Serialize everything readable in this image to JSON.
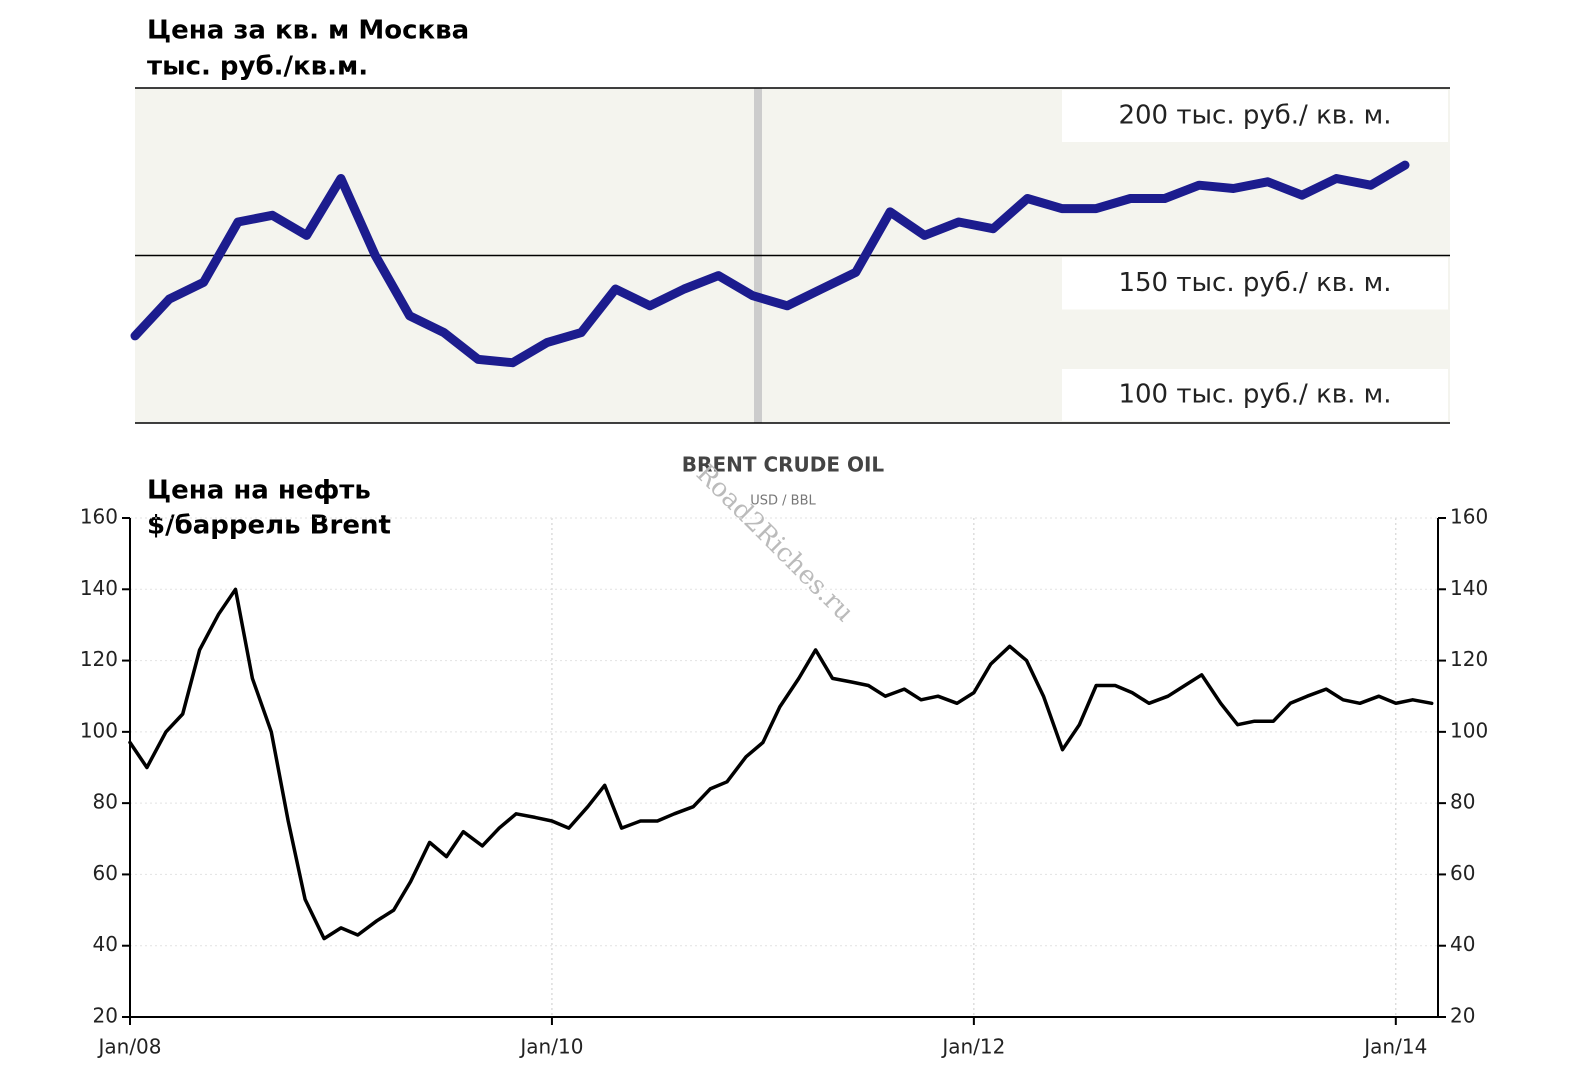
{
  "chart_data": [
    {
      "type": "line",
      "title": "Цена за кв. м Москва",
      "subtitle": "тыс. руб./кв.м.",
      "values": [
        126,
        137,
        142,
        160,
        162,
        156,
        173,
        150,
        132,
        127,
        119,
        118,
        124,
        127,
        140,
        135,
        140,
        144,
        138,
        135,
        140,
        145,
        163,
        156,
        160,
        158,
        167,
        164,
        164,
        167,
        167,
        171,
        170,
        172,
        168,
        173,
        171,
        177
      ],
      "color": "#1c1c8e",
      "ylim": [
        100,
        200
      ],
      "yticks": [
        {
          "value": 200,
          "label": "200 тыс. руб./ кв. м."
        },
        {
          "value": 150,
          "label": "150 тыс. руб./ кв. м."
        },
        {
          "value": 100,
          "label": "100 тыс. руб./ кв. м."
        }
      ]
    },
    {
      "type": "line",
      "title": "BRENT CRUDE OIL",
      "subtitle": "USD / BBL",
      "annotations": [
        "Цена на нефть",
        "$/баррель Brent",
        "Road2Riches.ru"
      ],
      "x": [
        2008.0,
        2008.08,
        2008.17,
        2008.25,
        2008.33,
        2008.42,
        2008.5,
        2008.58,
        2008.67,
        2008.75,
        2008.83,
        2008.92,
        2009.0,
        2009.08,
        2009.17,
        2009.25,
        2009.33,
        2009.42,
        2009.5,
        2009.58,
        2009.67,
        2009.75,
        2009.83,
        2009.92,
        2010.0,
        2010.08,
        2010.17,
        2010.25,
        2010.33,
        2010.42,
        2010.5,
        2010.58,
        2010.67,
        2010.75,
        2010.83,
        2010.92,
        2011.0,
        2011.08,
        2011.17,
        2011.25,
        2011.33,
        2011.42,
        2011.5,
        2011.58,
        2011.67,
        2011.75,
        2011.83,
        2011.92,
        2012.0,
        2012.08,
        2012.17,
        2012.25,
        2012.33,
        2012.42,
        2012.5,
        2012.58,
        2012.67,
        2012.75,
        2012.83,
        2012.92,
        2013.0,
        2013.08,
        2013.17,
        2013.25,
        2013.33,
        2013.42,
        2013.5,
        2013.58,
        2013.67,
        2013.75,
        2013.83,
        2013.92,
        2014.0,
        2014.08,
        2014.17
      ],
      "values": [
        97,
        90,
        100,
        105,
        123,
        133,
        140,
        115,
        100,
        75,
        53,
        42,
        45,
        43,
        47,
        50,
        58,
        69,
        65,
        72,
        68,
        73,
        77,
        76,
        75,
        73,
        79,
        85,
        73,
        75,
        75,
        77,
        79,
        84,
        86,
        93,
        97,
        107,
        115,
        123,
        115,
        114,
        113,
        110,
        112,
        109,
        110,
        108,
        111,
        119,
        124,
        120,
        110,
        95,
        102,
        113,
        113,
        111,
        108,
        110,
        113,
        116,
        108,
        102,
        103,
        103,
        108,
        110,
        112,
        109,
        108,
        110,
        108,
        109,
        108
      ],
      "color": "#000000",
      "xlim": [
        2008,
        2014.2
      ],
      "xticks": [
        {
          "value": 2008,
          "label": "Jan/08"
        },
        {
          "value": 2010,
          "label": "Jan/10"
        },
        {
          "value": 2012,
          "label": "Jan/12"
        },
        {
          "value": 2014,
          "label": "Jan/14"
        }
      ],
      "ylim": [
        20,
        160
      ],
      "yticks": [
        20,
        40,
        60,
        80,
        100,
        120,
        140,
        160
      ],
      "grid": true
    }
  ]
}
